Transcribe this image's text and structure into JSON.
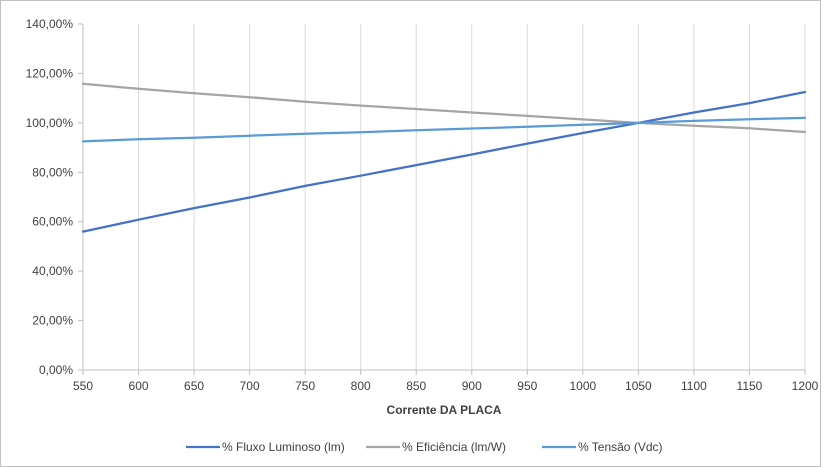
{
  "chart_data": {
    "type": "line",
    "title": "",
    "xlabel": "Corrente  DA PLACA",
    "ylabel": "",
    "x": [
      550,
      600,
      650,
      700,
      750,
      800,
      850,
      900,
      950,
      1000,
      1050,
      1100,
      1150,
      1200
    ],
    "x_tick_labels": [
      "550",
      "600",
      "650",
      "700",
      "750",
      "800",
      "850",
      "900",
      "950",
      "1000",
      "1050",
      "1100",
      "1150",
      "1200"
    ],
    "xlim": [
      550,
      1200
    ],
    "ylim": [
      0,
      140
    ],
    "y_ticks": [
      0,
      20,
      40,
      60,
      80,
      100,
      120,
      140
    ],
    "y_tick_labels": [
      "0,00%",
      "20,00%",
      "40,00%",
      "60,00%",
      "80,00%",
      "100,00%",
      "120,00%",
      "140,00%"
    ],
    "grid": "vertical",
    "legend_position": "bottom",
    "series": [
      {
        "name": "% Fluxo Luminoso (lm)",
        "color": "#4472C4",
        "values": [
          56.0,
          60.8,
          65.5,
          69.8,
          74.5,
          78.6,
          82.9,
          87.2,
          91.6,
          95.9,
          100.0,
          104.2,
          108.0,
          112.5
        ]
      },
      {
        "name": "% Eficiência (lm/W)",
        "color": "#A5A5A5",
        "values": [
          115.8,
          113.8,
          112.0,
          110.4,
          108.5,
          107.0,
          105.6,
          104.2,
          102.8,
          101.4,
          100.0,
          98.8,
          97.8,
          96.3
        ]
      },
      {
        "name": "% Tensão (Vdc)",
        "color": "#5B9BD5",
        "values": [
          92.5,
          93.4,
          94.0,
          94.8,
          95.6,
          96.2,
          97.0,
          97.7,
          98.4,
          99.2,
          100.0,
          100.8,
          101.5,
          102.0
        ]
      }
    ]
  }
}
